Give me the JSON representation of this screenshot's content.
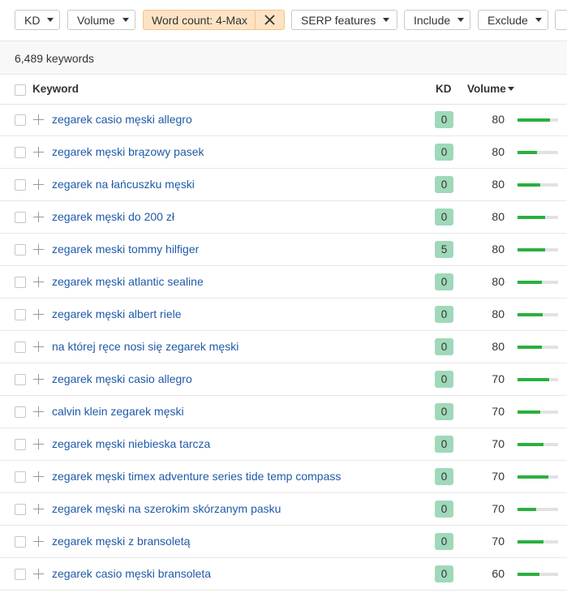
{
  "filters": [
    "KD",
    "Volume",
    "Word count: 4-Max",
    "SERP features",
    "Include",
    "Exclude"
  ],
  "keyword_count": "6,489 keywords",
  "table": {
    "headers": [
      "Keyword",
      "KD",
      "Volume"
    ],
    "rows": [
      {
        "keyword": "zegarek casio męski allegro",
        "kd": 0,
        "volume": 80,
        "bar": 80
      },
      {
        "keyword": "zegarek męski brązowy pasek",
        "kd": 0,
        "volume": 80,
        "bar": 48
      },
      {
        "keyword": "zegarek na łańcuszku męski",
        "kd": 0,
        "volume": 80,
        "bar": 56
      },
      {
        "keyword": "zegarek męski do 200 zł",
        "kd": 0,
        "volume": 80,
        "bar": 68
      },
      {
        "keyword": "zegarek meski tommy hilfiger",
        "kd": 5,
        "volume": 80,
        "bar": 68
      },
      {
        "keyword": "zegarek męski atlantic sealine",
        "kd": 0,
        "volume": 80,
        "bar": 60
      },
      {
        "keyword": "zegarek męski albert riele",
        "kd": 0,
        "volume": 80,
        "bar": 62
      },
      {
        "keyword": "na której ręce nosi się zegarek męski",
        "kd": 0,
        "volume": 80,
        "bar": 60
      },
      {
        "keyword": "zegarek męski casio allegro",
        "kd": 0,
        "volume": 70,
        "bar": 78
      },
      {
        "keyword": "calvin klein zegarek męski",
        "kd": 0,
        "volume": 70,
        "bar": 56
      },
      {
        "keyword": "zegarek męski niebieska tarcza",
        "kd": 0,
        "volume": 70,
        "bar": 64
      },
      {
        "keyword": "zegarek męski timex adventure series tide temp compass",
        "kd": 0,
        "volume": 70,
        "bar": 76
      },
      {
        "keyword": "zegarek męski na szerokim skórzanym pasku",
        "kd": 0,
        "volume": 70,
        "bar": 46
      },
      {
        "keyword": "zegarek męski z bransoletą",
        "kd": 0,
        "volume": 70,
        "bar": 64
      },
      {
        "keyword": "zegarek casio męski bransoleta",
        "kd": 0,
        "volume": 60,
        "bar": 54
      }
    ]
  }
}
